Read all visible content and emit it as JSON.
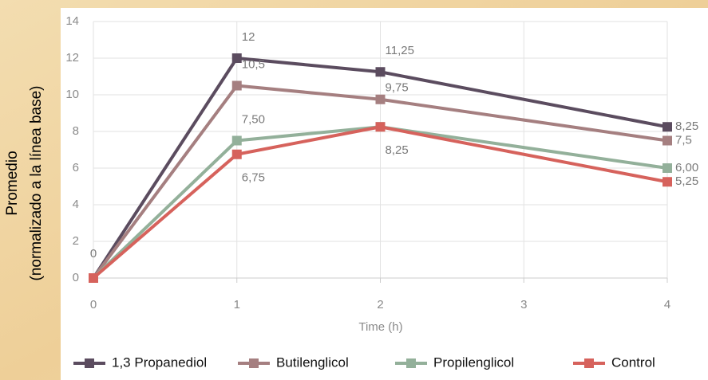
{
  "chart_data": {
    "type": "line",
    "ylabel": [
      "Promedio",
      "(normalizado a la línea base)"
    ],
    "xlabel": "Time (h)",
    "x": [
      0,
      1,
      2,
      4
    ],
    "xlim": [
      0,
      4
    ],
    "xticks": [
      0,
      1,
      2,
      3,
      4
    ],
    "ylim": [
      0,
      14
    ],
    "yticks": [
      0,
      2,
      4,
      6,
      8,
      10,
      12,
      14
    ],
    "grid": true,
    "series": [
      {
        "name": "1,3 Propanediol",
        "color": "#5b4c5f",
        "values": [
          0,
          12,
          11.25,
          8.25
        ],
        "value_labels": [
          "0",
          "12",
          "11,25",
          "8,25"
        ]
      },
      {
        "name": "Butilenglicol",
        "color": "#a57f80",
        "values": [
          0,
          10.5,
          9.75,
          7.5
        ],
        "value_labels": [
          null,
          "10,5",
          "9,75",
          "7,5"
        ]
      },
      {
        "name": "Propilenglicol",
        "color": "#93b09a",
        "values": [
          0,
          7.5,
          8.25,
          6.0
        ],
        "value_labels": [
          null,
          "7,50",
          null,
          "6,00"
        ]
      },
      {
        "name": "Control",
        "color": "#d6625c",
        "values": [
          0,
          6.75,
          8.25,
          5.25
        ],
        "value_labels": [
          null,
          "6,75",
          "8,25",
          "5,25"
        ]
      }
    ]
  }
}
